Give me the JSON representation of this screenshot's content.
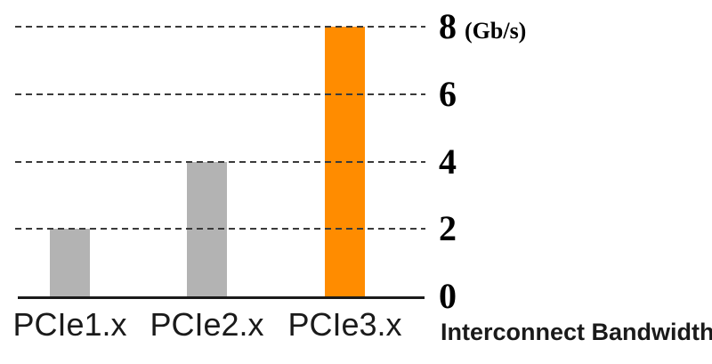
{
  "chart_data": {
    "type": "bar",
    "categories": [
      "PCIe1.x",
      "PCIe2.x",
      "PCIe3.x"
    ],
    "values": [
      2,
      4,
      8
    ],
    "bar_colors": [
      "#b3b3b3",
      "#b3b3b3",
      "#ff8c00"
    ],
    "yticks": [
      0,
      2,
      4,
      6,
      8
    ],
    "unit_label": "(Gb/s)",
    "xlabel": "Interconnect Bandwidth",
    "ylim": [
      0,
      8
    ],
    "grid": "dashed-horizontal",
    "legend": "none",
    "colors": {
      "bar_default": "#b3b3b3",
      "bar_highlight": "#ff8c00",
      "gridline": "#3a3a3a",
      "axis": "#1a1a1a",
      "text": "#000000"
    }
  }
}
